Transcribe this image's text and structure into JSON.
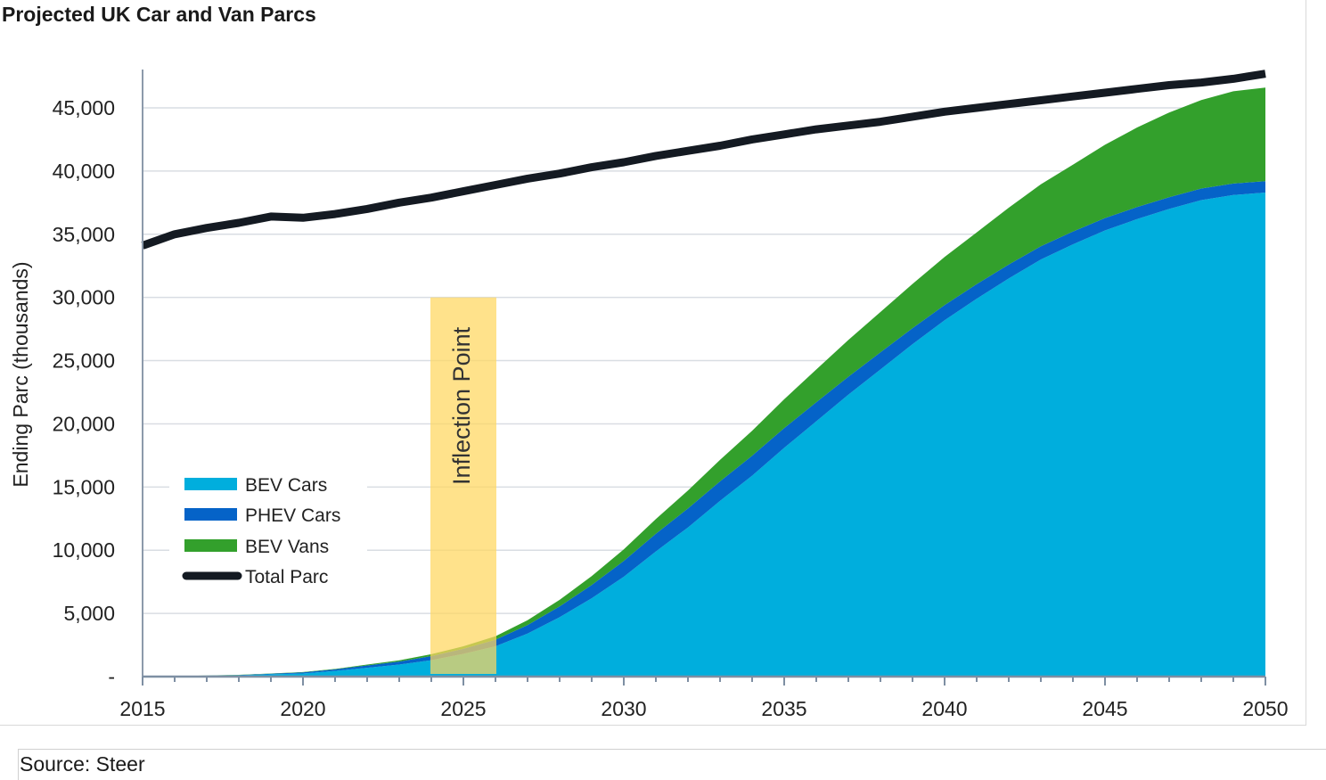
{
  "header": {
    "title": "Projected UK Car and Van Parcs"
  },
  "footer": {
    "source": "Source: Steer"
  },
  "colors": {
    "bev_cars": "#00AEDD",
    "phev_cars": "#0563C8",
    "bev_vans": "#33A02C",
    "total": "#141A22",
    "highlight": "#FFD75E",
    "grid": "#D9DDE3",
    "axis": "#8C9AAB"
  },
  "chart_data": {
    "type": "area",
    "title": "Projected UK Car and Van Parcs",
    "xlabel": "",
    "ylabel": "Ending Parc (thousands)",
    "xlim": [
      2015,
      2050
    ],
    "ylim": [
      0,
      48000
    ],
    "x_ticks": [
      2015,
      2020,
      2025,
      2030,
      2035,
      2040,
      2045,
      2050
    ],
    "y_ticks": [
      0,
      5000,
      10000,
      15000,
      20000,
      25000,
      30000,
      35000,
      40000,
      45000
    ],
    "y_tick_labels": [
      "-",
      "5,000",
      "10,000",
      "15,000",
      "20,000",
      "25,000",
      "30,000",
      "35,000",
      "40,000",
      "45,000"
    ],
    "x": [
      2015,
      2016,
      2017,
      2018,
      2019,
      2020,
      2021,
      2022,
      2023,
      2024,
      2025,
      2026,
      2027,
      2028,
      2029,
      2030,
      2031,
      2032,
      2033,
      2034,
      2035,
      2036,
      2037,
      2038,
      2039,
      2040,
      2041,
      2042,
      2043,
      2044,
      2045,
      2046,
      2047,
      2048,
      2049,
      2050
    ],
    "stacked": true,
    "series": [
      {
        "name": "BEV Cars",
        "kind": "area",
        "color_key": "bev_cars",
        "values": [
          0,
          20,
          60,
          100,
          180,
          250,
          450,
          700,
          950,
          1300,
          1800,
          2400,
          3400,
          4700,
          6200,
          7900,
          9900,
          11800,
          13900,
          15900,
          18100,
          20200,
          22300,
          24300,
          26300,
          28200,
          29900,
          31500,
          33000,
          34200,
          35300,
          36200,
          37000,
          37700,
          38100,
          38300
        ]
      },
      {
        "name": "PHEV Cars",
        "kind": "area",
        "color_key": "phev_cars",
        "values": [
          0,
          10,
          20,
          30,
          50,
          80,
          120,
          180,
          240,
          320,
          400,
          520,
          680,
          850,
          1050,
          1250,
          1400,
          1500,
          1550,
          1580,
          1560,
          1500,
          1430,
          1350,
          1270,
          1200,
          1150,
          1100,
          1050,
          1010,
          980,
          950,
          930,
          920,
          910,
          900
        ]
      },
      {
        "name": "BEV Vans",
        "kind": "area",
        "color_key": "bev_vans",
        "values": [
          0,
          0,
          10,
          10,
          20,
          30,
          40,
          70,
          100,
          150,
          200,
          270,
          380,
          520,
          700,
          920,
          1170,
          1430,
          1700,
          1970,
          2280,
          2600,
          2900,
          3200,
          3500,
          3800,
          4100,
          4500,
          4900,
          5300,
          5800,
          6300,
          6700,
          7000,
          7300,
          7400
        ]
      },
      {
        "name": "Total Parc",
        "kind": "line",
        "color_key": "total",
        "values": [
          34100,
          35000,
          35500,
          35900,
          36400,
          36300,
          36600,
          37000,
          37500,
          37900,
          38400,
          38900,
          39400,
          39800,
          40300,
          40700,
          41200,
          41600,
          42000,
          42500,
          42900,
          43300,
          43600,
          43900,
          44300,
          44700,
          45000,
          45300,
          45600,
          45900,
          46200,
          46500,
          46800,
          47000,
          47300,
          47700
        ]
      }
    ],
    "annotations": [
      {
        "label": "Inflection Point",
        "x_range": [
          2024,
          2026
        ],
        "y_range": [
          0,
          30000
        ]
      }
    ],
    "legend": {
      "position": "left-center",
      "entries": [
        "BEV Cars",
        "PHEV Cars",
        "BEV Vans",
        "Total Parc"
      ]
    }
  }
}
